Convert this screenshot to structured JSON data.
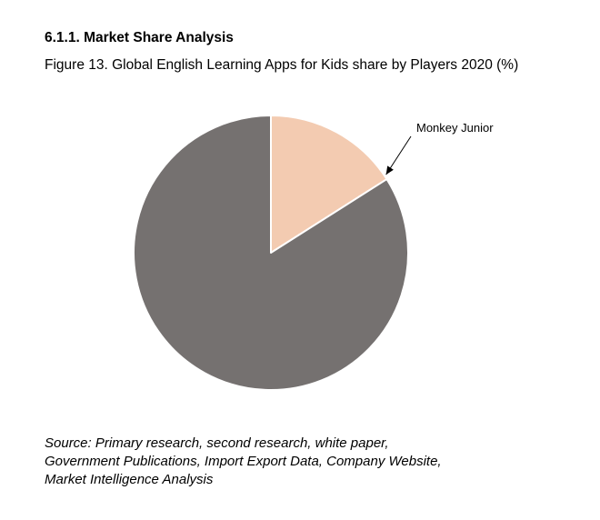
{
  "section_heading": "6.1.1. Market Share Analysis",
  "figure_caption": "Figure 13. Global English Learning Apps for Kids share by Players 2020 (%)",
  "source_note": "Source: Primary research, second research, white paper, Government Publications, Import Export Data, Company Website, Market Intelligence Analysis",
  "chart_data": {
    "type": "pie",
    "title": "",
    "slices": [
      {
        "label": "Monkey Junior",
        "value": 16,
        "color": "#f3cbb1"
      },
      {
        "label": "",
        "value": 84,
        "color": "#757170"
      }
    ],
    "start_angle_deg": 0,
    "direction": "clockwise",
    "slice_border_color": "#ffffff",
    "annotation": {
      "text": "Monkey Junior",
      "points_to_slice": 0,
      "style": "arrow"
    }
  }
}
